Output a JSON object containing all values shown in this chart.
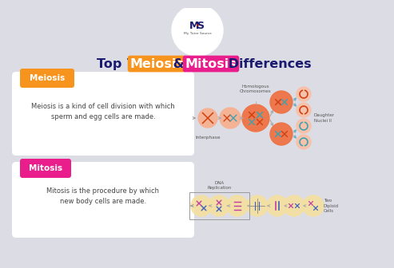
{
  "bg_color": "#dcdce4",
  "title_pieces": [
    {
      "text": "Top 7 ",
      "color": "#1a1a6e",
      "bg": null
    },
    {
      "text": "Meiosis",
      "color": "#ffffff",
      "bg": "#f7941d"
    },
    {
      "text": " & ",
      "color": "#1a1a6e",
      "bg": null
    },
    {
      "text": "Mitosis",
      "color": "#ffffff",
      "bg": "#e91e8c"
    },
    {
      "text": " Differences",
      "color": "#1a1a6e",
      "bg": null
    }
  ],
  "meiosis_label": "Meiosis",
  "meiosis_label_bg": "#f7941d",
  "meiosis_label_color": "#ffffff",
  "meiosis_desc": "Meiosis is a kind of cell division with which\nsperm and egg cells are made.",
  "meiosis_desc_color": "#444444",
  "mitosis_label": "Mitosis",
  "mitosis_label_bg": "#e91e8c",
  "mitosis_label_color": "#ffffff",
  "mitosis_desc": "Mitosis is the procedure by which\nnew body cells are made.",
  "mitosis_desc_color": "#444444",
  "card_color": "#ffffff",
  "label_interphase": "Interphase",
  "label_homologous": "Homologous\nChromosomes",
  "label_daughter": "Daughter\nNuclei II",
  "label_dna": "DNA\nReplication",
  "label_two_diploid": "Two\nDiploid\nCells",
  "cell_orange": "#f4956a",
  "cell_orange_dark": "#f07040",
  "cell_pink_light": "#f8c0a8",
  "cell_yellow": "#f5e0a0",
  "chrom_red": "#d04010",
  "chrom_teal": "#40a0b0",
  "chrom_blue": "#4060c0",
  "chrom_pink": "#c040a0",
  "arrow_color": "#aaaaaa",
  "arrow_color2": "#60b0c0"
}
